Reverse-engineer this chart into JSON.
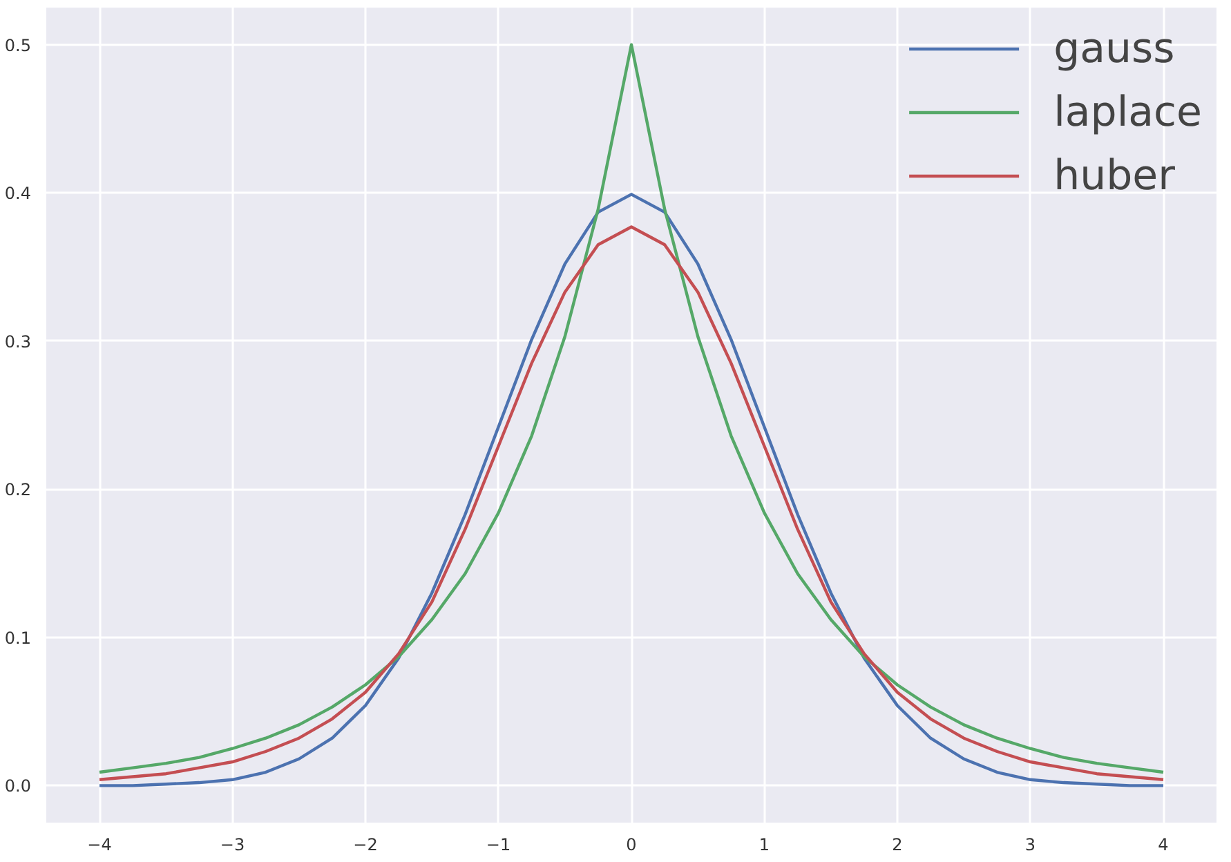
{
  "chart_data": {
    "type": "line",
    "x": [
      -4,
      -3.75,
      -3.5,
      -3.25,
      -3,
      -2.75,
      -2.5,
      -2.25,
      -2,
      -1.75,
      -1.5,
      -1.25,
      -1,
      -0.75,
      -0.5,
      -0.25,
      0,
      0.25,
      0.5,
      0.75,
      1,
      1.25,
      1.5,
      1.75,
      2,
      2.25,
      2.5,
      2.75,
      3,
      3.25,
      3.5,
      3.75,
      4
    ],
    "series": [
      {
        "name": "gauss",
        "color": "#4c72b0",
        "values": [
          0.0,
          0.0,
          0.001,
          0.002,
          0.004,
          0.009,
          0.018,
          0.032,
          0.054,
          0.086,
          0.13,
          0.183,
          0.242,
          0.301,
          0.352,
          0.387,
          0.399,
          0.387,
          0.352,
          0.301,
          0.242,
          0.183,
          0.13,
          0.086,
          0.054,
          0.032,
          0.018,
          0.009,
          0.004,
          0.002,
          0.001,
          0.0,
          0.0
        ]
      },
      {
        "name": "laplace",
        "color": "#55a868",
        "values": [
          0.009,
          0.012,
          0.015,
          0.019,
          0.025,
          0.032,
          0.041,
          0.053,
          0.068,
          0.087,
          0.112,
          0.143,
          0.184,
          0.236,
          0.303,
          0.389,
          0.5,
          0.389,
          0.303,
          0.236,
          0.184,
          0.143,
          0.112,
          0.087,
          0.068,
          0.053,
          0.041,
          0.032,
          0.025,
          0.019,
          0.015,
          0.012,
          0.009
        ]
      },
      {
        "name": "huber",
        "color": "#c44e52",
        "values": [
          0.004,
          0.006,
          0.008,
          0.012,
          0.016,
          0.023,
          0.032,
          0.045,
          0.063,
          0.089,
          0.124,
          0.173,
          0.229,
          0.285,
          0.333,
          0.365,
          0.377,
          0.365,
          0.333,
          0.285,
          0.229,
          0.173,
          0.124,
          0.089,
          0.063,
          0.045,
          0.032,
          0.023,
          0.016,
          0.012,
          0.008,
          0.006,
          0.004
        ]
      }
    ],
    "xlim": [
      -4.4,
      4.4
    ],
    "ylim": [
      -0.025,
      0.525
    ],
    "xticks": [
      {
        "value": -4,
        "label": "−4"
      },
      {
        "value": -3,
        "label": "−3"
      },
      {
        "value": -2,
        "label": "−2"
      },
      {
        "value": -1,
        "label": "−1"
      },
      0,
      1,
      2,
      3,
      4
    ],
    "yticks": [
      {
        "value": 0,
        "label": "0.0"
      },
      0.1,
      0.2,
      0.3,
      0.4,
      0.5
    ],
    "grid": true,
    "legend": "top right",
    "line_style": "solid"
  }
}
